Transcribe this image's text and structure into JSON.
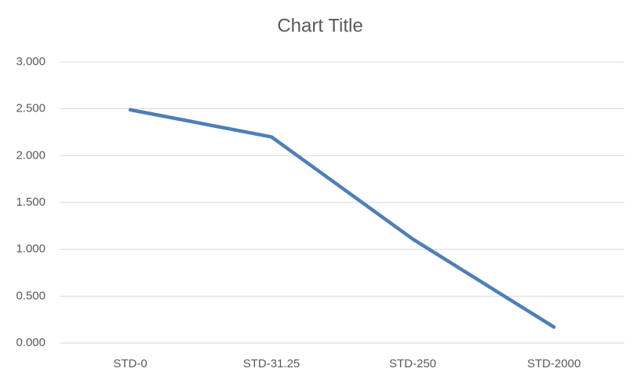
{
  "chart_data": {
    "type": "line",
    "title": "Chart Title",
    "categories": [
      "STD-0",
      "STD-31.25",
      "STD-250",
      "STD-2000"
    ],
    "values": [
      2.49,
      2.2,
      1.11,
      0.17
    ],
    "color": "#4f7fb8",
    "ylim": [
      0,
      3
    ],
    "yticks": [
      {
        "value": 0,
        "label": "0.000"
      },
      {
        "value": 0.5,
        "label": "0.500"
      },
      {
        "value": 1,
        "label": "1.000"
      },
      {
        "value": 1.5,
        "label": "1.500"
      },
      {
        "value": 2,
        "label": "2.000"
      },
      {
        "value": 2.5,
        "label": "2.500"
      },
      {
        "value": 3,
        "label": "3.000"
      }
    ],
    "grid": true
  }
}
